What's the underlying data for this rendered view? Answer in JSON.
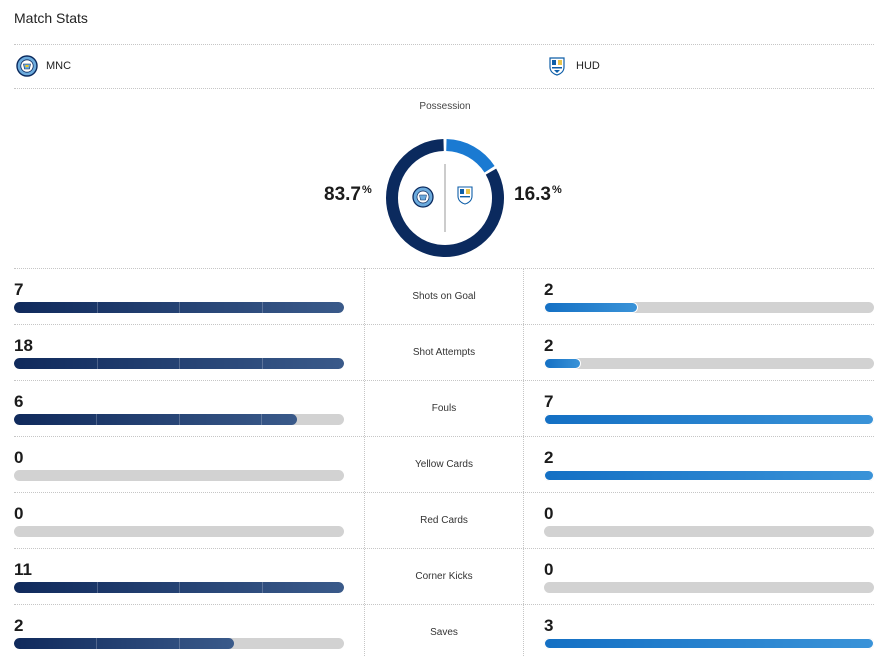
{
  "title": "Match Stats",
  "teams": {
    "home": {
      "abbr": "MNC",
      "crest_icon": "manchester-city-crest-icon",
      "color": "#0b2a5e"
    },
    "away": {
      "abbr": "HUD",
      "crest_icon": "huddersfield-crest-icon",
      "color": "#1a7ad2"
    }
  },
  "possession": {
    "label": "Possession",
    "home": 83.7,
    "away": 16.3,
    "home_text": "83.7",
    "away_text": "16.3",
    "unit": "%"
  },
  "stats": [
    {
      "label": "Shots on Goal",
      "home": "7",
      "away": "2",
      "home_fill": 1.0,
      "away_fill": 0.286
    },
    {
      "label": "Shot Attempts",
      "home": "18",
      "away": "2",
      "home_fill": 1.0,
      "away_fill": 0.111
    },
    {
      "label": "Fouls",
      "home": "6",
      "away": "7",
      "home_fill": 0.857,
      "away_fill": 1.0
    },
    {
      "label": "Yellow Cards",
      "home": "0",
      "away": "2",
      "home_fill": 0.0,
      "away_fill": 1.0
    },
    {
      "label": "Red Cards",
      "home": "0",
      "away": "0",
      "home_fill": 0.0,
      "away_fill": 0.0
    },
    {
      "label": "Corner Kicks",
      "home": "11",
      "away": "0",
      "home_fill": 1.0,
      "away_fill": 0.0
    },
    {
      "label": "Saves",
      "home": "2",
      "away": "3",
      "home_fill": 0.667,
      "away_fill": 1.0
    }
  ]
}
